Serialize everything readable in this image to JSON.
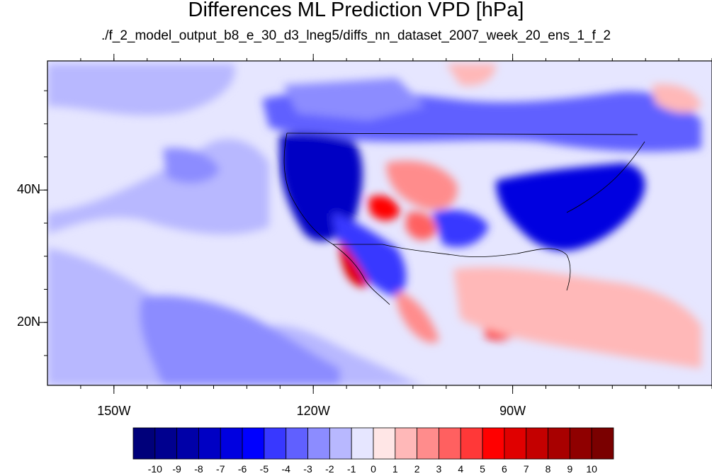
{
  "title": "Differences ML Prediction VPD [hPa]",
  "subtitle": "./f_2_model_output_b8_e_30_d3_lneg5/diffs_nn_dataset_2007_week_20_ens_1_f_2",
  "map": {
    "lon_range": [
      -160,
      -60
    ],
    "lat_range": [
      10.5,
      59.5
    ],
    "lat_ticks": [
      {
        "value": 40,
        "label": "40N"
      },
      {
        "value": 20,
        "label": "20N"
      }
    ],
    "lon_ticks": [
      {
        "value": -150,
        "label": "150W"
      },
      {
        "value": -120,
        "label": "120W"
      },
      {
        "value": -90,
        "label": "90W"
      }
    ]
  },
  "colorbar": {
    "labels": [
      "-10",
      "-9",
      "-8",
      "-7",
      "-6",
      "-5",
      "-4",
      "-3",
      "-2",
      "-1",
      "0",
      "1",
      "2",
      "3",
      "4",
      "5",
      "6",
      "7",
      "8",
      "9",
      "10"
    ],
    "colors": [
      "#00007a",
      "#00008f",
      "#0000a8",
      "#0000c4",
      "#0000e0",
      "#0000ff",
      "#3838ff",
      "#6060ff",
      "#8c8cff",
      "#b8b8ff",
      "#e6e6ff",
      "#ffe6e6",
      "#ffb8b8",
      "#ff8c8c",
      "#ff6060",
      "#ff3838",
      "#ff0000",
      "#e00000",
      "#c40000",
      "#a80000",
      "#8f0000",
      "#7a0000"
    ]
  }
}
